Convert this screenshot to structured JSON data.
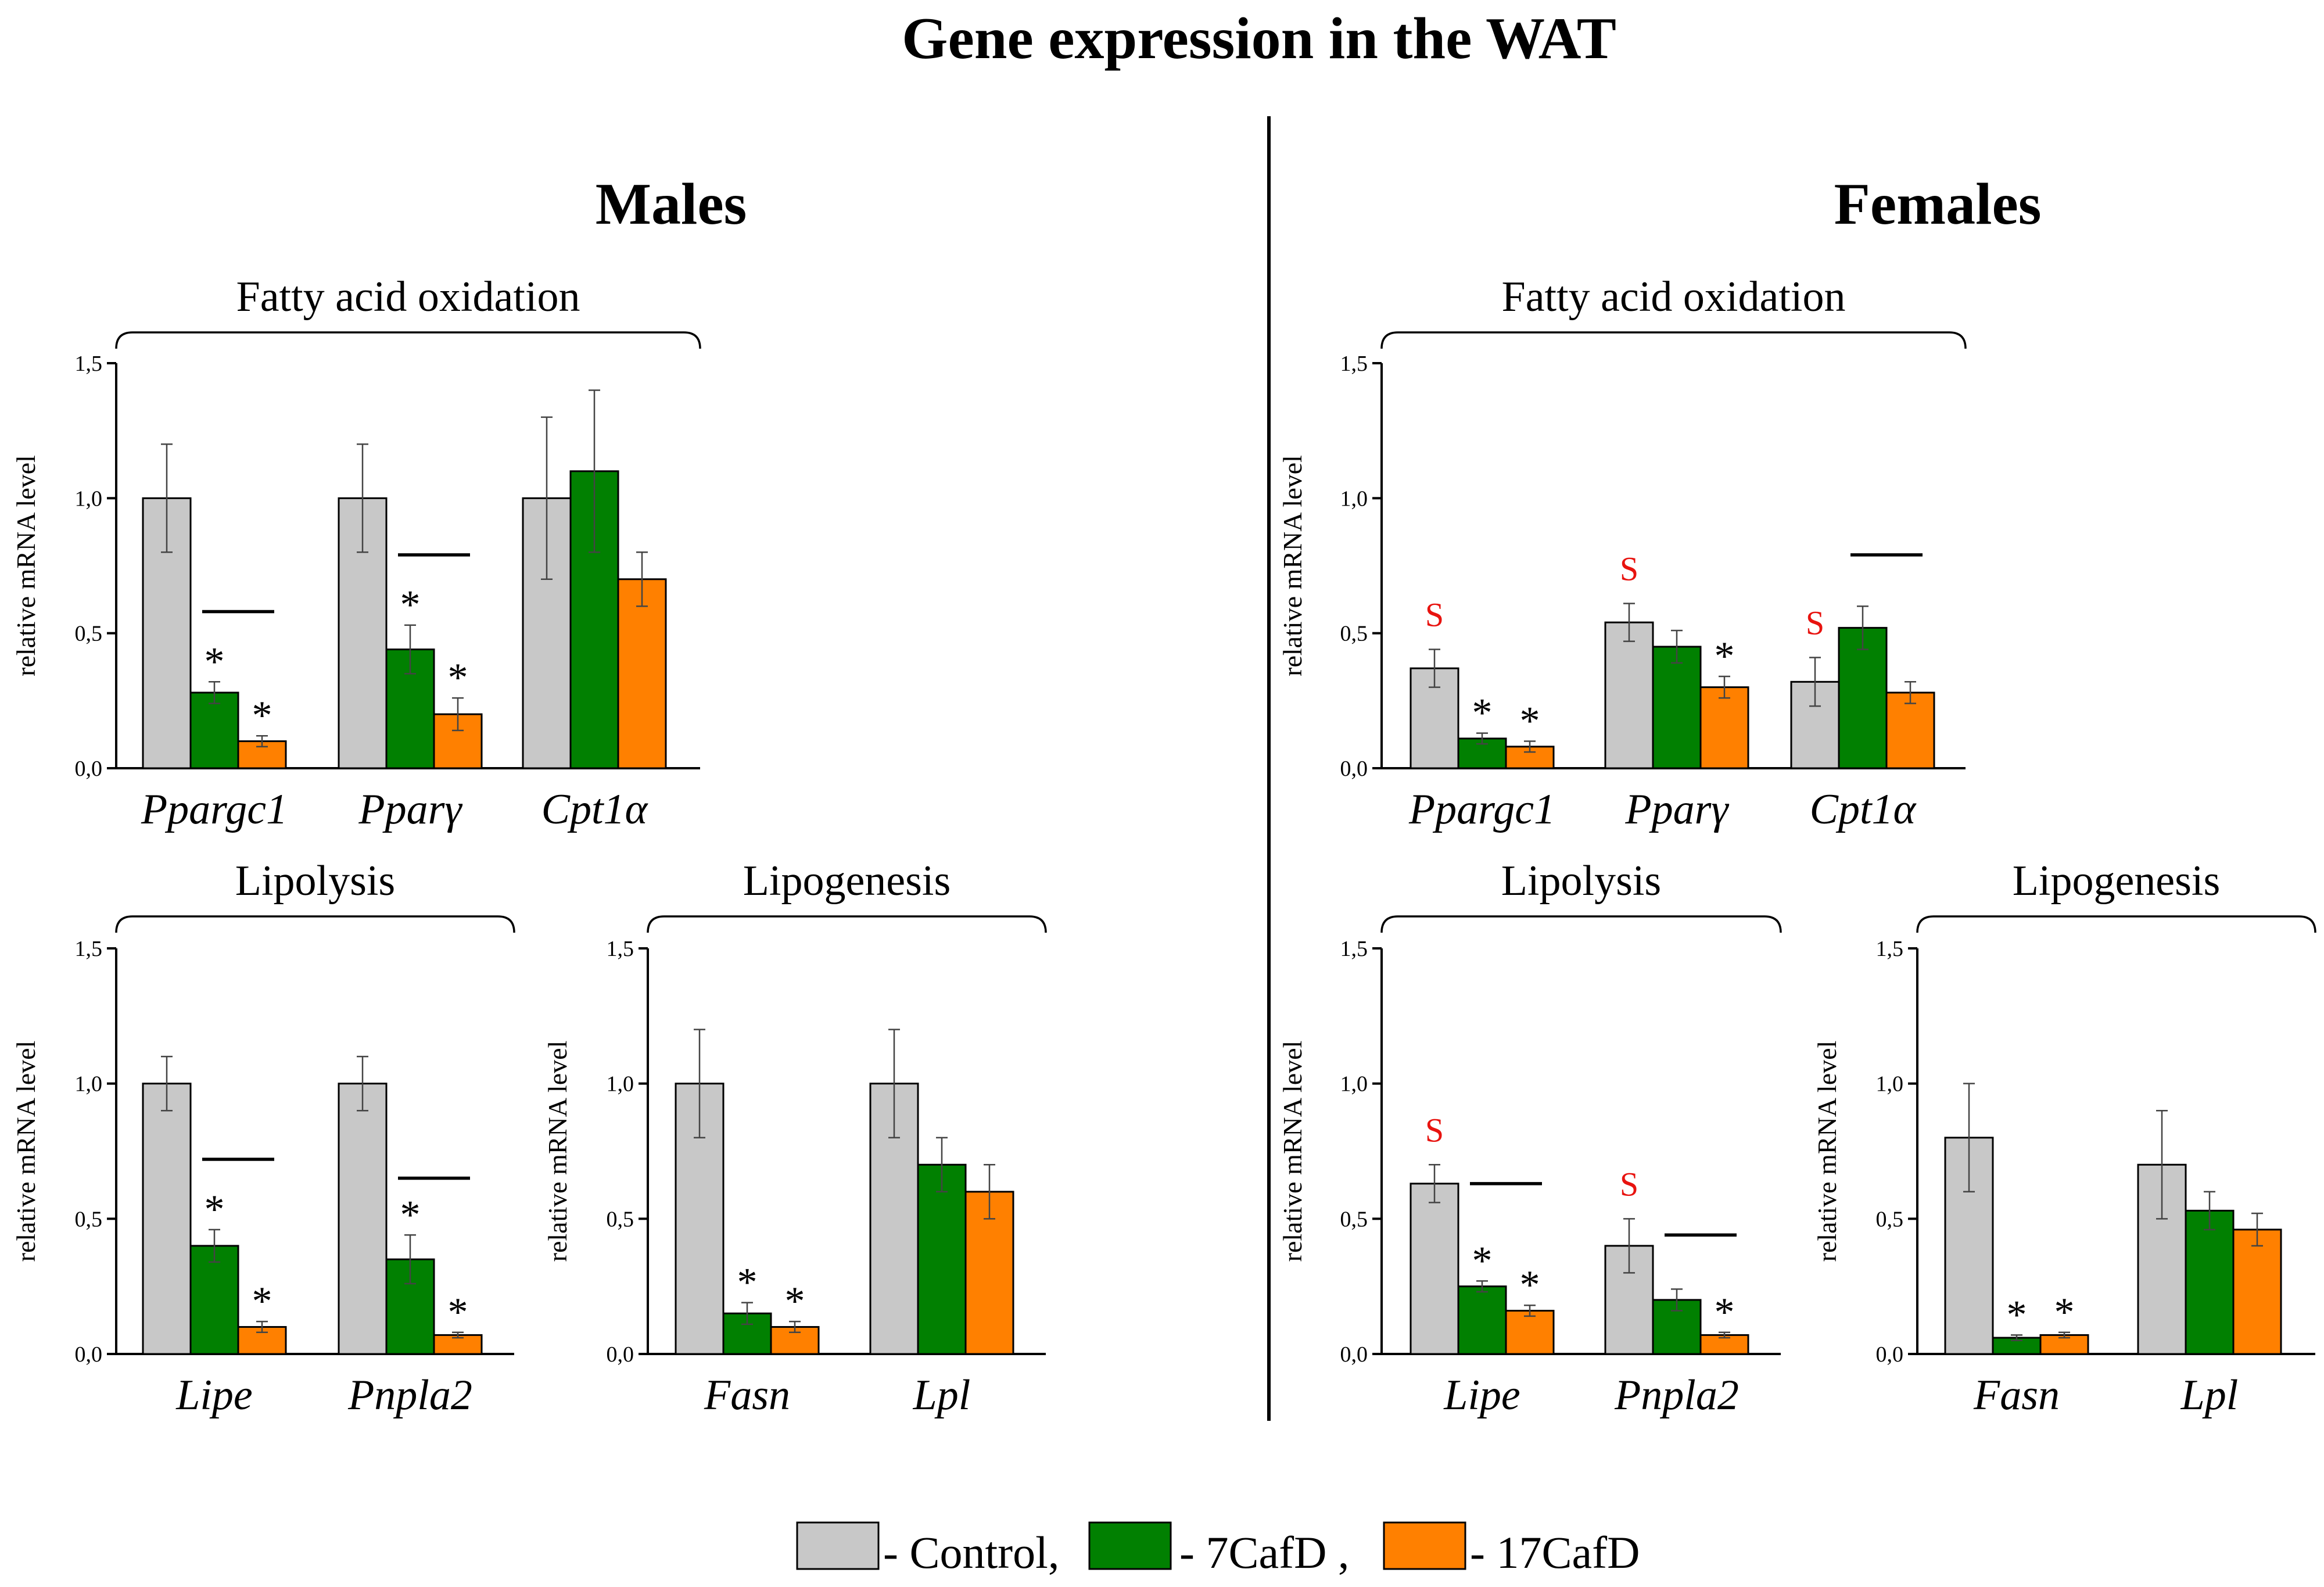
{
  "title": "Gene expression in the WAT",
  "colors": {
    "Control": "#c8c8c8",
    "7CafD": "#018001",
    "17CafD": "#ff8000",
    "sig": "#e8130f"
  },
  "sections": [
    {
      "key": "males",
      "label": "Males"
    },
    {
      "key": "females",
      "label": "Females"
    }
  ],
  "legend": [
    {
      "series": "Control",
      "label": "- Control,"
    },
    {
      "series": "7CafD",
      "label": "- 7CafD ,"
    },
    {
      "series": "17CafD",
      "label": "- 17CafD"
    }
  ],
  "chart_data": [
    {
      "id": "males-fao",
      "type": "bar",
      "group": "Fatty acid oxidation",
      "ylabel": "relative mRNA level",
      "ylim": [
        0,
        1.5
      ],
      "yticks": [
        "0,0",
        "0,5",
        "1,0",
        "1,5"
      ],
      "categories": [
        "Ppargc1",
        "Pparγ",
        "Cpt1α"
      ],
      "series": [
        {
          "name": "Control",
          "values": [
            1.0,
            1.0,
            1.0
          ],
          "errors": [
            0.2,
            0.2,
            0.3
          ]
        },
        {
          "name": "7CafD",
          "values": [
            0.28,
            0.44,
            1.1
          ],
          "errors": [
            0.04,
            0.09,
            0.3
          ]
        },
        {
          "name": "17CafD",
          "values": [
            0.1,
            0.2,
            0.7
          ],
          "errors": [
            0.02,
            0.06,
            0.1
          ]
        }
      ],
      "stars": [
        {
          "cat": 0,
          "series": 1
        },
        {
          "cat": 0,
          "series": 2
        },
        {
          "cat": 1,
          "series": 1
        },
        {
          "cat": 1,
          "series": 2
        }
      ],
      "brackets": [
        {
          "cat": 0,
          "y": 0.58
        },
        {
          "cat": 1,
          "y": 0.79
        }
      ],
      "sig": []
    },
    {
      "id": "males-lipolysis",
      "type": "bar",
      "group": "Lipolysis",
      "ylabel": "relative mRNA level",
      "ylim": [
        0,
        1.5
      ],
      "yticks": [
        "0,0",
        "0,5",
        "1,0",
        "1,5"
      ],
      "categories": [
        "Lipe",
        "Pnpla2"
      ],
      "series": [
        {
          "name": "Control",
          "values": [
            1.0,
            1.0
          ],
          "errors": [
            0.1,
            0.1
          ]
        },
        {
          "name": "7CafD",
          "values": [
            0.4,
            0.35
          ],
          "errors": [
            0.06,
            0.09
          ]
        },
        {
          "name": "17CafD",
          "values": [
            0.1,
            0.07
          ],
          "errors": [
            0.02,
            0.01
          ]
        }
      ],
      "stars": [
        {
          "cat": 0,
          "series": 1
        },
        {
          "cat": 0,
          "series": 2
        },
        {
          "cat": 1,
          "series": 1
        },
        {
          "cat": 1,
          "series": 2
        }
      ],
      "brackets": [
        {
          "cat": 0,
          "y": 0.72
        },
        {
          "cat": 1,
          "y": 0.65
        }
      ],
      "sig": []
    },
    {
      "id": "males-lipogenesis",
      "type": "bar",
      "group": "Lipogenesis",
      "ylabel": "relative mRNA level",
      "ylim": [
        0,
        1.5
      ],
      "yticks": [
        "0,0",
        "0,5",
        "1,0",
        "1,5"
      ],
      "categories": [
        "Fasn",
        "Lpl"
      ],
      "series": [
        {
          "name": "Control",
          "values": [
            1.0,
            1.0
          ],
          "errors": [
            0.2,
            0.2
          ]
        },
        {
          "name": "7CafD",
          "values": [
            0.15,
            0.7
          ],
          "errors": [
            0.04,
            0.1
          ]
        },
        {
          "name": "17CafD",
          "values": [
            0.1,
            0.6
          ],
          "errors": [
            0.02,
            0.1
          ]
        }
      ],
      "stars": [
        {
          "cat": 0,
          "series": 1
        },
        {
          "cat": 0,
          "series": 2
        }
      ],
      "brackets": [],
      "sig": []
    },
    {
      "id": "females-fao",
      "type": "bar",
      "group": "Fatty acid oxidation",
      "ylabel": "relative mRNA level",
      "ylim": [
        0,
        1.5
      ],
      "yticks": [
        "0,0",
        "0,5",
        "1,0",
        "1,5"
      ],
      "categories": [
        "Ppargc1",
        "Pparγ",
        "Cpt1α"
      ],
      "series": [
        {
          "name": "Control",
          "values": [
            0.37,
            0.54,
            0.32
          ],
          "errors": [
            0.07,
            0.07,
            0.09
          ]
        },
        {
          "name": "7CafD",
          "values": [
            0.11,
            0.45,
            0.52
          ],
          "errors": [
            0.02,
            0.06,
            0.08
          ]
        },
        {
          "name": "17CafD",
          "values": [
            0.08,
            0.3,
            0.28
          ],
          "errors": [
            0.02,
            0.04,
            0.04
          ]
        }
      ],
      "stars": [
        {
          "cat": 0,
          "series": 1
        },
        {
          "cat": 0,
          "series": 2
        },
        {
          "cat": 1,
          "series": 2
        }
      ],
      "brackets": [
        {
          "cat": 2,
          "y": 0.79
        }
      ],
      "sig": [
        {
          "cat": 0,
          "label": "S"
        },
        {
          "cat": 1,
          "label": "S"
        },
        {
          "cat": 2,
          "label": "S"
        }
      ]
    },
    {
      "id": "females-lipolysis",
      "type": "bar",
      "group": "Lipolysis",
      "ylabel": "relative mRNA level",
      "ylim": [
        0,
        1.5
      ],
      "yticks": [
        "0,0",
        "0,5",
        "1,0",
        "1,5"
      ],
      "categories": [
        "Lipe",
        "Pnpla2"
      ],
      "series": [
        {
          "name": "Control",
          "values": [
            0.63,
            0.4
          ],
          "errors": [
            0.07,
            0.1
          ]
        },
        {
          "name": "7CafD",
          "values": [
            0.25,
            0.2
          ],
          "errors": [
            0.02,
            0.04
          ]
        },
        {
          "name": "17CafD",
          "values": [
            0.16,
            0.07
          ],
          "errors": [
            0.02,
            0.01
          ]
        }
      ],
      "stars": [
        {
          "cat": 0,
          "series": 1
        },
        {
          "cat": 0,
          "series": 2
        },
        {
          "cat": 1,
          "series": 2
        }
      ],
      "brackets": [
        {
          "cat": 0,
          "y": 0.63
        },
        {
          "cat": 1,
          "y": 0.44
        }
      ],
      "sig": [
        {
          "cat": 0,
          "label": "S"
        },
        {
          "cat": 1,
          "label": "S"
        }
      ]
    },
    {
      "id": "females-lipogenesis",
      "type": "bar",
      "group": "Lipogenesis",
      "ylabel": "relative mRNA level",
      "ylim": [
        0,
        1.5
      ],
      "yticks": [
        "0,0",
        "0,5",
        "1,0",
        "1,5"
      ],
      "categories": [
        "Fasn",
        "Lpl"
      ],
      "series": [
        {
          "name": "Control",
          "values": [
            0.8,
            0.7
          ],
          "errors": [
            0.2,
            0.2
          ]
        },
        {
          "name": "7CafD",
          "values": [
            0.06,
            0.53
          ],
          "errors": [
            0.01,
            0.07
          ]
        },
        {
          "name": "17CafD",
          "values": [
            0.07,
            0.46
          ],
          "errors": [
            0.01,
            0.06
          ]
        }
      ],
      "stars": [
        {
          "cat": 0,
          "series": 1
        },
        {
          "cat": 0,
          "series": 2
        }
      ],
      "brackets": [],
      "sig": []
    }
  ]
}
